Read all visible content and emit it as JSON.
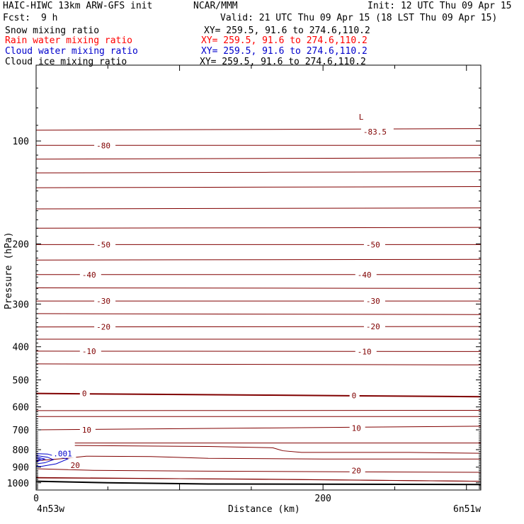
{
  "header": {
    "model": "HAIC-HIWC 13km ARW-GFS init",
    "org": "NCAR/MMM",
    "init": "Init: 12 UTC Thu 09 Apr 15",
    "fcst_label": "Fcst:",
    "fcst_value": "9 h",
    "valid": "Valid: 21 UTC Thu 09 Apr 15 (18 LST Thu 09 Apr 15)"
  },
  "fields": [
    {
      "name": "Snow mixing ratio",
      "xy": "XY= 259.5, 91.6 to 274.6,110.2",
      "color": "#000000"
    },
    {
      "name": "Rain water mixing ratio",
      "xy": "XY= 259.5, 91.6 to 274.6,110.2",
      "color": "#ff0000"
    },
    {
      "name": "Cloud water mixing ratio",
      "xy": "XY= 259.5, 91.6 to 274.6,110.2",
      "color": "#0000cc"
    },
    {
      "name": "Cloud ice mixing ratio",
      "xy": "XY= 259.5, 91.6 to 274.6,110.2",
      "color": "#000000"
    }
  ],
  "chart_data": {
    "type": "contour",
    "xlabel": "Distance (km)",
    "ylabel": "Pressure (hPa)",
    "x_range": [
      0,
      310
    ],
    "y_range": [
      1050,
      60
    ],
    "y_scale": "log",
    "x_ticks": [
      0,
      200
    ],
    "y_ticks": [
      100,
      200,
      300,
      400,
      500,
      600,
      700,
      800,
      900,
      1000
    ],
    "x_start_label": "4n53w",
    "x_end_label": "6n51w",
    "temperature_contours": {
      "color": "#800000",
      "interval": 5,
      "levels": [
        {
          "value": -85,
          "p": [
            93,
            92
          ]
        },
        {
          "value": -80,
          "p": [
            103,
            103
          ]
        },
        {
          "value": -75,
          "p": [
            113,
            112
          ]
        },
        {
          "value": -70,
          "p": [
            124,
            123
          ]
        },
        {
          "value": -65,
          "p": [
            137,
            136
          ]
        },
        {
          "value": -60,
          "p": [
            158,
            157
          ]
        },
        {
          "value": -55,
          "p": [
            180,
            179
          ]
        },
        {
          "value": -50,
          "p": [
            201,
            201
          ]
        },
        {
          "value": -45,
          "p": [
            223,
            222
          ]
        },
        {
          "value": -40,
          "p": [
            246,
            246
          ]
        },
        {
          "value": -35,
          "p": [
            269,
            270
          ]
        },
        {
          "value": -30,
          "p": [
            294,
            294
          ]
        },
        {
          "value": -25,
          "p": [
            320,
            322
          ]
        },
        {
          "value": -20,
          "p": [
            350,
            349
          ]
        },
        {
          "value": -15,
          "p": [
            380,
            380
          ]
        },
        {
          "value": -10,
          "p": [
            412,
            413
          ]
        },
        {
          "value": -5,
          "p": [
            449,
            452
          ]
        },
        {
          "value": 0,
          "p": [
            548,
            560
          ]
        },
        {
          "value": 5,
          "p": [
            615,
            614
          ]
        },
        {
          "value": 10,
          "p": [
            700,
            683
          ]
        },
        {
          "value": 15,
          "p": [
            778,
            765
          ]
        },
        {
          "value": 20,
          "p": [
            888,
            932
          ]
        },
        {
          "value": 25,
          "p": [
            965,
            990
          ]
        }
      ],
      "labels": [
        {
          "text": "-80",
          "x": 42,
          "p": 103
        },
        {
          "text": "L",
          "x": 225,
          "p": 85
        },
        {
          "text": "-83.5",
          "x": 228,
          "p": 94
        },
        {
          "text": "-50",
          "x": 42,
          "p": 201
        },
        {
          "text": "-50",
          "x": 230,
          "p": 201
        },
        {
          "text": "-40",
          "x": 32,
          "p": 246
        },
        {
          "text": "-40",
          "x": 224,
          "p": 246
        },
        {
          "text": "-30",
          "x": 42,
          "p": 294
        },
        {
          "text": "-30",
          "x": 230,
          "p": 294
        },
        {
          "text": "-20",
          "x": 42,
          "p": 350
        },
        {
          "text": "-20",
          "x": 230,
          "p": 349
        },
        {
          "text": "-10",
          "x": 32,
          "p": 412
        },
        {
          "text": "-10",
          "x": 224,
          "p": 413
        },
        {
          "text": "0",
          "x": 32,
          "p": 548
        },
        {
          "text": "0",
          "x": 220,
          "p": 556
        },
        {
          "text": "10",
          "x": 32,
          "p": 700
        },
        {
          "text": "10",
          "x": 220,
          "p": 692
        },
        {
          "text": "20",
          "x": 24,
          "p": 888
        },
        {
          "text": "20",
          "x": 220,
          "p": 922
        }
      ]
    },
    "cloud_water": {
      "color": "#0000cc",
      "label": ".001",
      "label_x": 12,
      "label_p": 822
    },
    "terrain_p": [
      990,
      1012
    ]
  }
}
